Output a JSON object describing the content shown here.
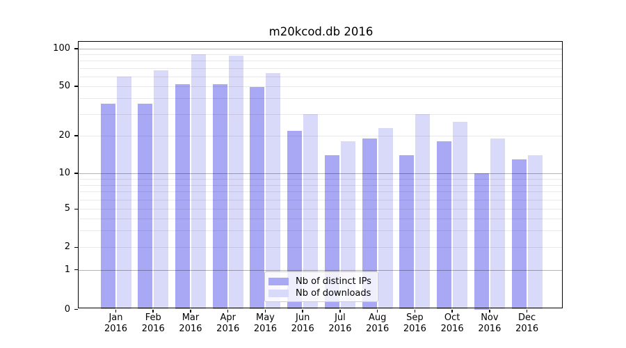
{
  "chart_data": {
    "type": "bar",
    "title": "m20kcod.db 2016",
    "categories": [
      "Jan",
      "Feb",
      "Mar",
      "Apr",
      "May",
      "Jun",
      "Jul",
      "Aug",
      "Sep",
      "Oct",
      "Nov",
      "Dec"
    ],
    "x_year_label": "2016",
    "series": [
      {
        "name": "Nb of distinct IPs",
        "key": "distinct-ips",
        "color": "#a8a8f4",
        "values": [
          36,
          36,
          52,
          52,
          49,
          22,
          14,
          19,
          14,
          18,
          10,
          13
        ]
      },
      {
        "name": "Nb of downloads",
        "key": "downloads",
        "color": "#d9d9f9",
        "values": [
          60,
          67,
          90,
          88,
          64,
          30,
          18,
          23,
          30,
          26,
          19,
          14
        ]
      }
    ],
    "y_axis": {
      "scale": "symlog",
      "tick_values": [
        100,
        50,
        20,
        10,
        5,
        2,
        1,
        0
      ],
      "tick_labels": [
        "100",
        "50",
        "20",
        "10",
        "5",
        "2",
        "1",
        "0"
      ],
      "ylim": [
        0,
        115
      ],
      "grid": true
    },
    "legend": {
      "position": "lower center",
      "entries": [
        "Nb of distinct IPs",
        "Nb of downloads"
      ]
    },
    "background_color": "#ffffff",
    "grid_minor_values": [
      2,
      3,
      4,
      5,
      6,
      7,
      8,
      9,
      20,
      30,
      40,
      50,
      60,
      70,
      80,
      90
    ],
    "grid_major_values": [
      1,
      10,
      100
    ]
  }
}
